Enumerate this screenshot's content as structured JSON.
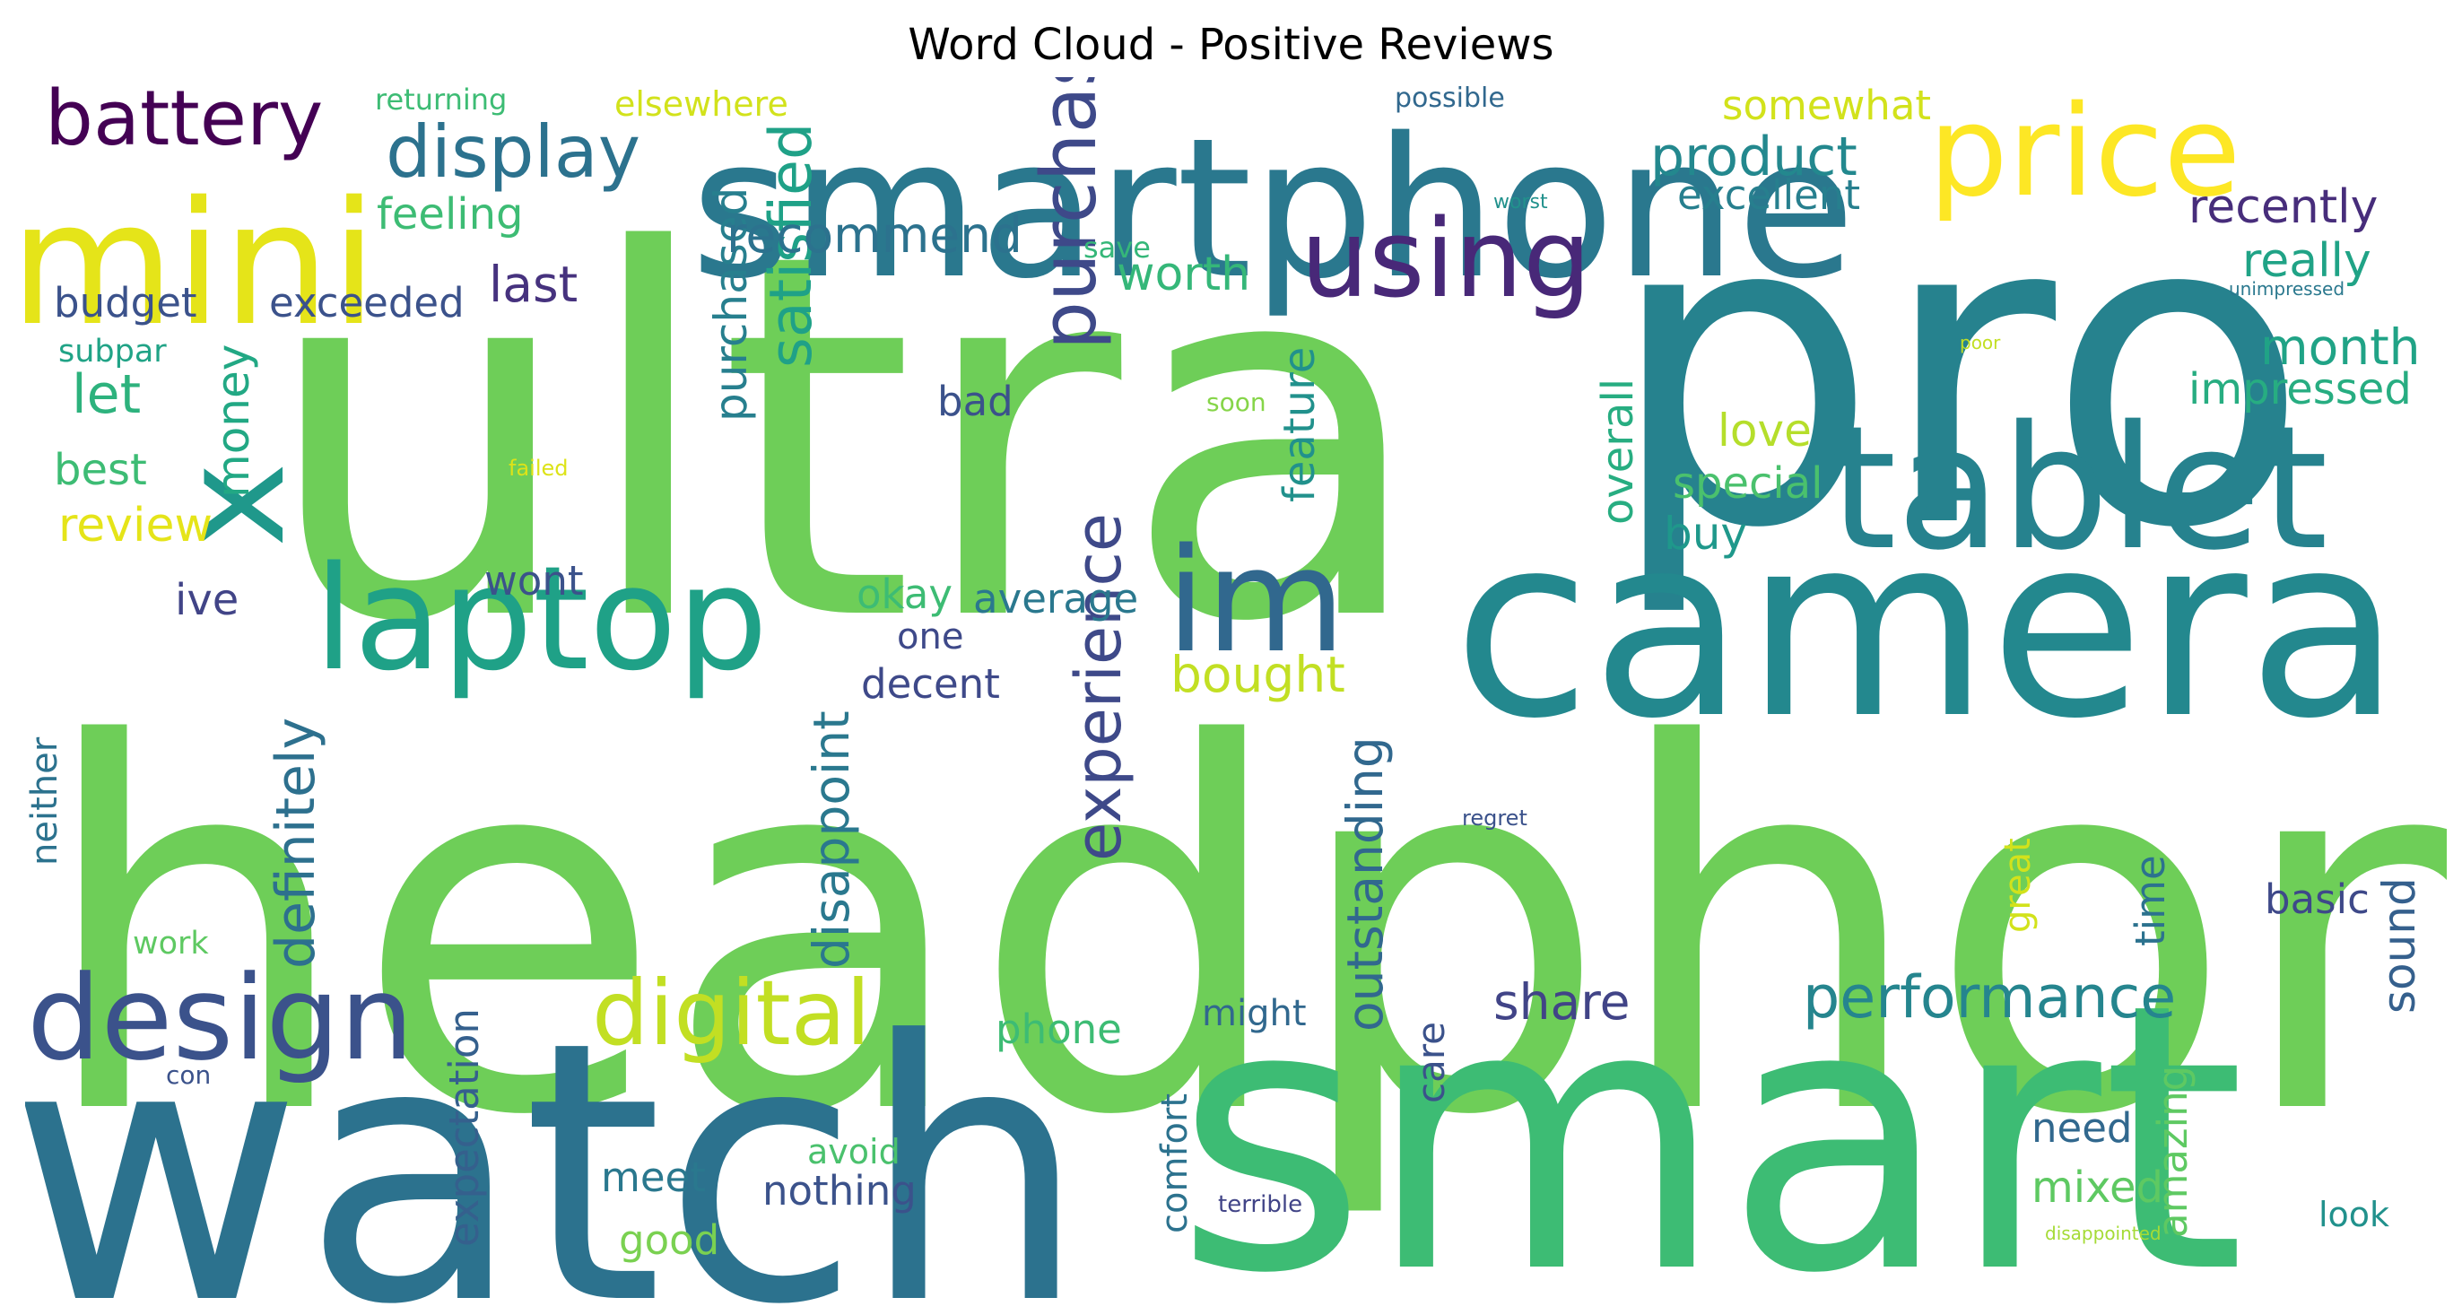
{
  "title": "Word Cloud - Positive Reviews",
  "words": [
    {
      "text": "headphone",
      "color": "#6ece58"
    },
    {
      "text": "ultra",
      "color": "#6ece58"
    },
    {
      "text": "pro",
      "color": "#26828e"
    },
    {
      "text": "smart",
      "color": "#3dbc74"
    },
    {
      "text": "watch",
      "color": "#2c728e"
    },
    {
      "text": "smartphone",
      "color": "#2a788e"
    },
    {
      "text": "camera",
      "color": "#23888e"
    },
    {
      "text": "tablet",
      "color": "#26828e"
    },
    {
      "text": "mini",
      "color": "#e5e419"
    },
    {
      "text": "price",
      "color": "#fde725"
    },
    {
      "text": "laptop",
      "color": "#1fa187"
    },
    {
      "text": "im",
      "color": "#31688e"
    },
    {
      "text": "x",
      "color": "#1f988b"
    },
    {
      "text": "design",
      "color": "#3b528b"
    },
    {
      "text": "digital",
      "color": "#c2df23"
    },
    {
      "text": "using",
      "color": "#482878"
    },
    {
      "text": "battery",
      "color": "#440154"
    },
    {
      "text": "display",
      "color": "#2c728e"
    },
    {
      "text": "performance",
      "color": "#25858e"
    },
    {
      "text": "purchase",
      "color": "#3e4989"
    },
    {
      "text": "satisfied",
      "color": "#1fa187"
    },
    {
      "text": "experience",
      "color": "#3e4989"
    },
    {
      "text": "definitely",
      "color": "#2d708e"
    },
    {
      "text": "disappoint",
      "color": "#2a788e"
    },
    {
      "text": "outstanding",
      "color": "#31688e"
    },
    {
      "text": "purchased",
      "color": "#277f8e"
    },
    {
      "text": "recommend",
      "color": "#2c728e"
    },
    {
      "text": "product",
      "color": "#23888e"
    },
    {
      "text": "somewhat",
      "color": "#d2e21b"
    },
    {
      "text": "excellent",
      "color": "#277f8e"
    },
    {
      "text": "recently",
      "color": "#472d7b"
    },
    {
      "text": "really",
      "color": "#20a386"
    },
    {
      "text": "month",
      "color": "#20a386"
    },
    {
      "text": "impressed",
      "color": "#27ad81"
    },
    {
      "text": "feeling",
      "color": "#3dbc74"
    },
    {
      "text": "exceeded",
      "color": "#3b528b"
    },
    {
      "text": "budget",
      "color": "#3b528b"
    },
    {
      "text": "last",
      "color": "#46327e"
    },
    {
      "text": "worth",
      "color": "#35b779"
    },
    {
      "text": "money",
      "color": "#22a884"
    },
    {
      "text": "let",
      "color": "#2db27d"
    },
    {
      "text": "best",
      "color": "#3dbc74"
    },
    {
      "text": "review",
      "color": "#e5e419"
    },
    {
      "text": "subpar",
      "color": "#20a386"
    },
    {
      "text": "feature",
      "color": "#21918c"
    },
    {
      "text": "overall",
      "color": "#27ad81"
    },
    {
      "text": "love",
      "color": "#b5de2b"
    },
    {
      "text": "special",
      "color": "#4ac16d"
    },
    {
      "text": "buy",
      "color": "#1f988b"
    },
    {
      "text": "bought",
      "color": "#c2df23"
    },
    {
      "text": "okay",
      "color": "#3dbc74"
    },
    {
      "text": "average",
      "color": "#2a788e"
    },
    {
      "text": "one",
      "color": "#3e4989"
    },
    {
      "text": "decent",
      "color": "#3e4989"
    },
    {
      "text": "ive",
      "color": "#414487"
    },
    {
      "text": "wont",
      "color": "#3b528b"
    },
    {
      "text": "bad",
      "color": "#3b528b"
    },
    {
      "text": "share",
      "color": "#414487"
    },
    {
      "text": "phone",
      "color": "#3dbc74"
    },
    {
      "text": "might",
      "color": "#31688e"
    },
    {
      "text": "basic",
      "color": "#3e4989"
    },
    {
      "text": "sound",
      "color": "#35608d"
    },
    {
      "text": "time",
      "color": "#2c728e"
    },
    {
      "text": "great",
      "color": "#d2e21b"
    },
    {
      "text": "need",
      "color": "#31688e"
    },
    {
      "text": "mixed",
      "color": "#5ec962"
    },
    {
      "text": "amazing",
      "color": "#5ec962"
    },
    {
      "text": "look",
      "color": "#21918c"
    },
    {
      "text": "meet",
      "color": "#2a788e"
    },
    {
      "text": "good",
      "color": "#7ad151"
    },
    {
      "text": "nothing",
      "color": "#3b528b"
    },
    {
      "text": "avoid",
      "color": "#4ac16d"
    },
    {
      "text": "comfort",
      "color": "#2c728e"
    },
    {
      "text": "expectation",
      "color": "#35608d"
    },
    {
      "text": "care",
      "color": "#3b528b"
    },
    {
      "text": "neither",
      "color": "#2c728e"
    },
    {
      "text": "work",
      "color": "#5ec962"
    },
    {
      "text": "con",
      "color": "#3b528b"
    },
    {
      "text": "returning",
      "color": "#3dbc74"
    },
    {
      "text": "elsewhere",
      "color": "#d2e21b"
    },
    {
      "text": "possible",
      "color": "#31688e"
    },
    {
      "text": "worst",
      "color": "#21918c"
    },
    {
      "text": "save",
      "color": "#35b779"
    },
    {
      "text": "unimpressed",
      "color": "#2a788e"
    },
    {
      "text": "poor",
      "color": "#c2df23"
    },
    {
      "text": "soon",
      "color": "#86d549"
    },
    {
      "text": "failed",
      "color": "#dde318"
    },
    {
      "text": "regret",
      "color": "#3b528b"
    },
    {
      "text": "terrible",
      "color": "#414487"
    },
    {
      "text": "disappointed",
      "color": "#a5db36"
    }
  ]
}
